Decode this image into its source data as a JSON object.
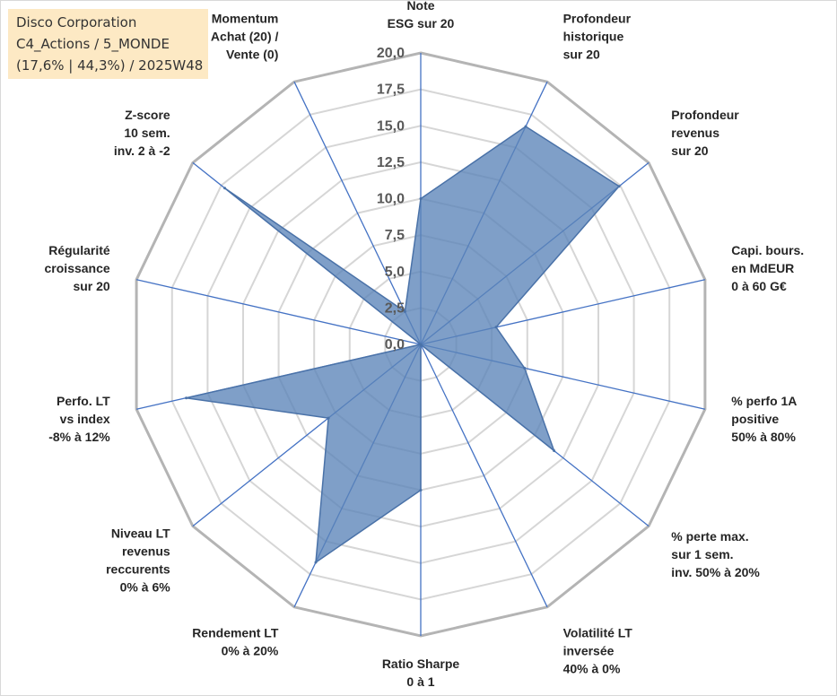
{
  "info": {
    "company": "Disco Corporation",
    "portfolio": "C4_Actions / 5_MONDE",
    "stats": "(17,6% | 44,3%) / 2025W48"
  },
  "colors": {
    "fill": "#5b84b8",
    "stroke": "#4a72a8",
    "spoke": "#4472c4",
    "grid": "#bfbfbf"
  },
  "chart_data": {
    "type": "radar",
    "title": "",
    "rmin": 0,
    "rmax": 20,
    "step": 2.5,
    "ticks": [
      "0,0",
      "2,5",
      "5,0",
      "7,5",
      "10,0",
      "12,5",
      "15,0",
      "17,5",
      "20,0"
    ],
    "axes": [
      {
        "label": [
          "Note",
          "ESG sur 20"
        ],
        "value": 10.0
      },
      {
        "label": [
          "Profondeur",
          "historique",
          "sur 20"
        ],
        "value": 16.6
      },
      {
        "label": [
          "Profondeur",
          "revenus",
          "sur 20"
        ],
        "value": 17.4
      },
      {
        "label": [
          "Capi. bours.",
          "en MdEUR",
          "0 à 60 G€"
        ],
        "value": 5.3
      },
      {
        "label": [
          "% perfo 1A",
          "positive",
          "50% à 80%"
        ],
        "value": 7.3
      },
      {
        "label": [
          "% perte max.",
          "sur 1 sem.",
          "inv. 50% à 20%"
        ],
        "value": 11.7
      },
      {
        "label": [
          "Volatilité LT",
          "inversée",
          "40% à 0%"
        ],
        "value": 0.0
      },
      {
        "label": [
          "Ratio Sharpe",
          "0 à 1"
        ],
        "value": 10.0
      },
      {
        "label": [
          "Rendement LT",
          "0% à 20%"
        ],
        "value": 16.6
      },
      {
        "label": [
          "Niveau LT",
          "revenus",
          "reccurents",
          "0% à 6%"
        ],
        "value": 8.1
      },
      {
        "label": [
          "Perfo. LT",
          "vs index",
          "-8% à 12%"
        ],
        "value": 16.5
      },
      {
        "label": [
          "Régularité",
          "croissance",
          "sur 20"
        ],
        "value": 0.0
      },
      {
        "label": [
          "Z-score",
          "10 sem.",
          "inv. 2 à -2"
        ],
        "value": 17.2
      },
      {
        "label": [
          "Momentum",
          "Achat (20) /",
          "Vente (0)"
        ],
        "value": 2.5
      }
    ]
  }
}
